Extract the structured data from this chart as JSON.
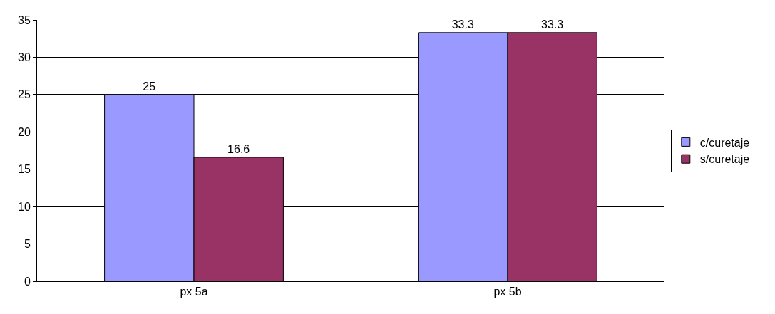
{
  "chart_data": {
    "type": "bar",
    "categories": [
      "px 5a",
      "px 5b"
    ],
    "series": [
      {
        "name": "c/curetaje",
        "color": "#9999ff",
        "values": [
          25,
          33.3
        ]
      },
      {
        "name": "s/curetaje",
        "color": "#993366",
        "values": [
          16.6,
          33.3
        ]
      }
    ],
    "ylim": [
      0,
      35
    ],
    "yticks": [
      0,
      5,
      10,
      15,
      20,
      25,
      30,
      35
    ],
    "grid": "y",
    "legend": "right",
    "data_labels": true
  }
}
